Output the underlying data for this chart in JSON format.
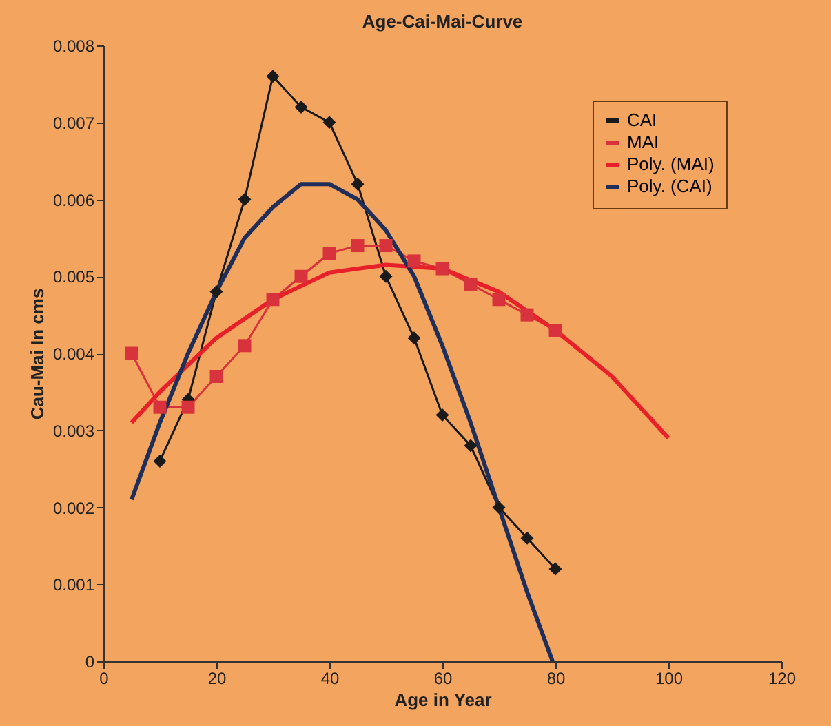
{
  "chart_data": {
    "type": "line",
    "title": "Age-Cai-Mai-Curve",
    "xlabel": "Age in Year",
    "ylabel": "Cau-Mai In cms",
    "xlim": [
      0,
      120
    ],
    "xticks": [
      0,
      20,
      40,
      60,
      80,
      100,
      120
    ],
    "ylim": [
      0,
      0.008
    ],
    "yticks": [
      0,
      0.001,
      0.002,
      0.003,
      0.004,
      0.005,
      0.006,
      0.007,
      0.008
    ],
    "grid": false,
    "legend": "top right",
    "series": [
      {
        "name": "CAI",
        "color": "#1a1a1a",
        "marker": "diamond",
        "x": [
          10,
          15,
          20,
          25,
          30,
          35,
          40,
          45,
          50,
          55,
          60,
          65,
          70,
          75,
          80
        ],
        "values": [
          0.0026,
          0.0034,
          0.0048,
          0.006,
          0.0076,
          0.0072,
          0.007,
          0.0062,
          0.005,
          0.0042,
          0.0032,
          0.0028,
          0.002,
          0.0016,
          0.0012
        ]
      },
      {
        "name": "MAI",
        "color": "#d8323c",
        "marker": "square",
        "x": [
          5,
          10,
          15,
          20,
          25,
          30,
          35,
          40,
          45,
          50,
          55,
          60,
          65,
          70,
          75,
          80
        ],
        "values": [
          0.004,
          0.0033,
          0.0033,
          0.0037,
          0.0041,
          0.0047,
          0.005,
          0.0053,
          0.0054,
          0.0054,
          0.0052,
          0.0051,
          0.0049,
          0.0047,
          0.0045,
          0.0043
        ]
      },
      {
        "name": "Poly. (MAI)",
        "color": "#e8202a",
        "marker": "none",
        "x": [
          5,
          10,
          20,
          30,
          40,
          50,
          60,
          70,
          80,
          90,
          100
        ],
        "values": [
          0.0031,
          0.0035,
          0.0042,
          0.0047,
          0.00505,
          0.00515,
          0.0051,
          0.0048,
          0.0043,
          0.0037,
          0.0029
        ]
      },
      {
        "name": "Poly. (CAI)",
        "color": "#1f2f5a",
        "marker": "none",
        "x": [
          5,
          10,
          15,
          20,
          25,
          30,
          35,
          40,
          45,
          50,
          55,
          60,
          65,
          70,
          75,
          79.5
        ],
        "values": [
          0.0021,
          0.0031,
          0.004,
          0.0048,
          0.0055,
          0.0059,
          0.0062,
          0.0062,
          0.006,
          0.0056,
          0.005,
          0.0041,
          0.0031,
          0.002,
          0.0009,
          0
        ]
      }
    ]
  }
}
